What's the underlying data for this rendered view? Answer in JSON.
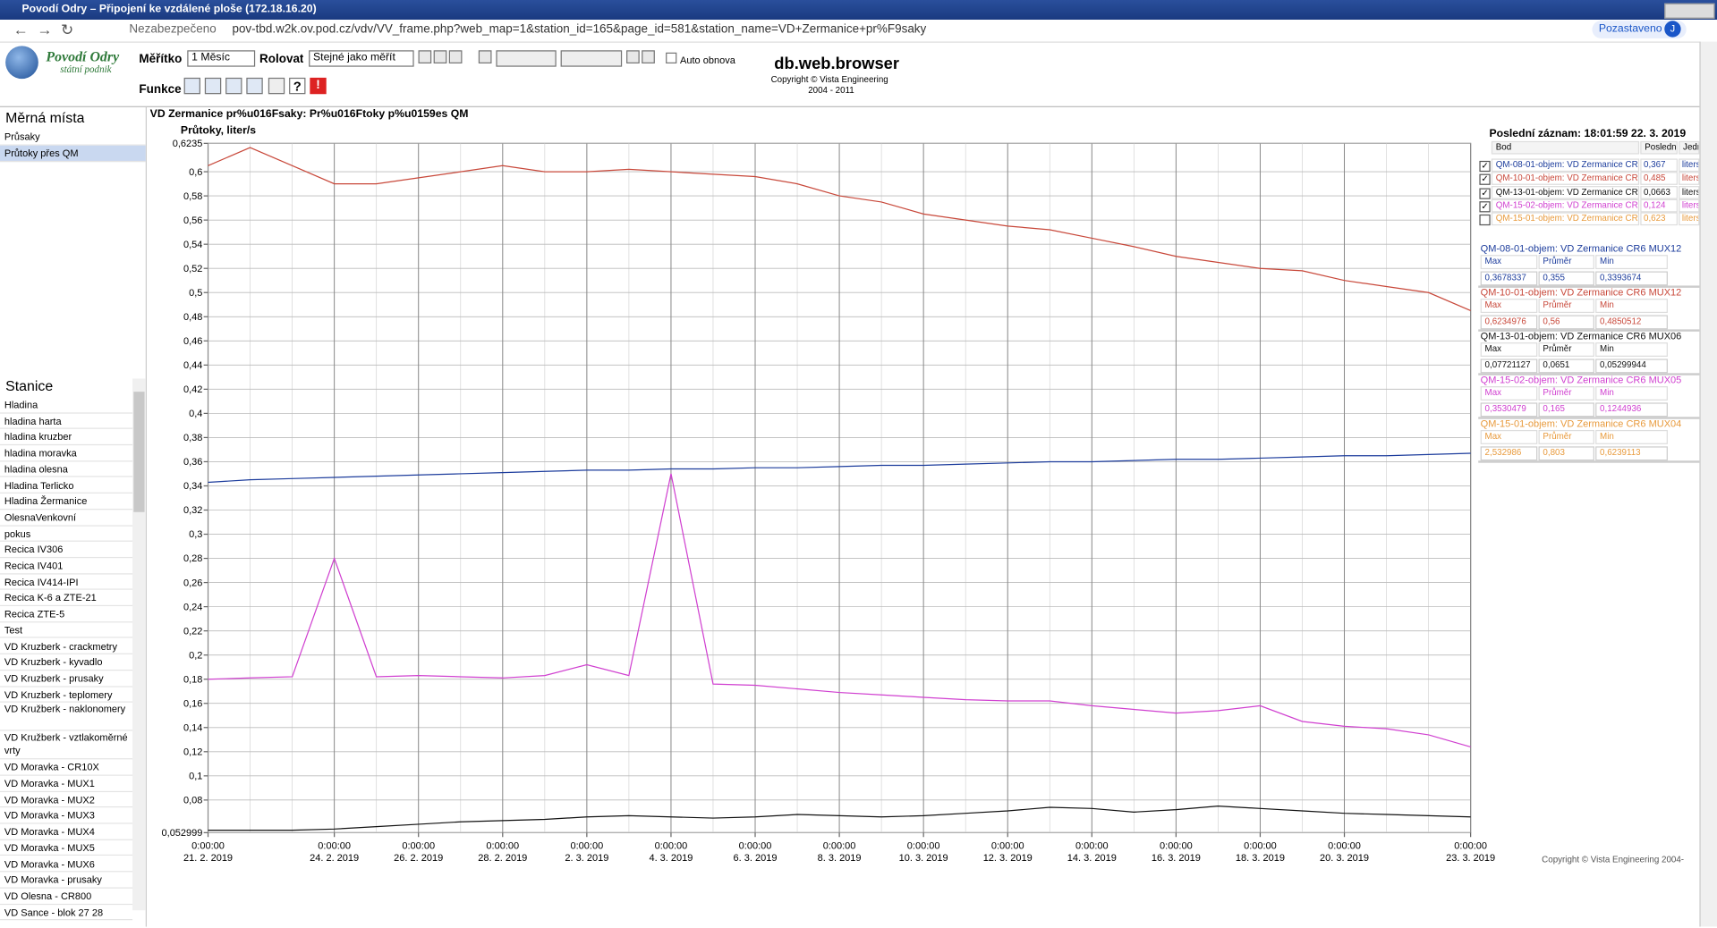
{
  "window_title": "Povodí Odry – Připojení ke vzdálené ploše (172.18.16.20)",
  "browser": {
    "security": "Nezabezpečeno",
    "url": "pov-tbd.w2k.ov.pod.cz/vdv/VV_frame.php?web_map=1&station_id=165&page_id=581&station_name=VD+Zermanice+pr%F9saky",
    "profile": "Pozastaveno",
    "avatar": "J"
  },
  "header": {
    "logo_line1": "Povodí Odry",
    "logo_line2": "státní podnik",
    "scale_label": "Měřítko",
    "scale_value": "1 Měsíc",
    "scroll_label": "Rolovat",
    "scroll_value": "Stejné jako měřít",
    "auto_refresh": "Auto obnova",
    "functions_label": "Funkce",
    "app_title": "db.web.browser",
    "copyright": "Copyright © Vista Engineering",
    "years": "2004 - 2011"
  },
  "sidebar": {
    "places_title": "Měrná místa",
    "places": [
      "Průsaky",
      "Průtoky přes QM"
    ],
    "stations_title": "Stanice",
    "stations": [
      "Hladina",
      "hladina harta",
      "hladina kruzber",
      "hladina moravka",
      "hladina olesna",
      "Hladina Terlicko",
      "Hladina Žermanice",
      "OlesnaVenkovní",
      "pokus",
      "Recica IV306",
      "Recica IV401",
      "Recica IV414-IPI",
      "Recica K-6 a ZTE-21",
      "Recica ZTE-5",
      "Test",
      "VD Kruzberk - crackmetry",
      "VD Kruzberk - kyvadlo",
      "VD Kruzberk - prusaky",
      "VD Kruzberk - teplomery",
      "VD Kružberk - naklonomery",
      "VD Kružberk - vztlakoměrné vrty",
      "VD Moravka - CR10X",
      "VD Moravka - MUX1",
      "VD Moravka - MUX2",
      "VD Moravka - MUX3",
      "VD Moravka - MUX4",
      "VD Moravka - MUX5",
      "VD Moravka - MUX6",
      "VD Moravka - prusaky",
      "VD Olesna - CR800",
      "VD Sance - blok 27 28"
    ]
  },
  "chart_data": {
    "type": "line",
    "title": "VD Zermanice pr%u016Fsaky: Pr%u016Ftoky p%u0159es QM",
    "y_label": "Průtoky, liter/s",
    "x": [
      "2019-02-21",
      "2019-02-22",
      "2019-02-23",
      "2019-02-24",
      "2019-02-25",
      "2019-02-26",
      "2019-02-27",
      "2019-02-28",
      "2019-03-01",
      "2019-03-02",
      "2019-03-03",
      "2019-03-04",
      "2019-03-05",
      "2019-03-06",
      "2019-03-07",
      "2019-03-08",
      "2019-03-09",
      "2019-03-10",
      "2019-03-11",
      "2019-03-12",
      "2019-03-13",
      "2019-03-14",
      "2019-03-15",
      "2019-03-16",
      "2019-03-17",
      "2019-03-18",
      "2019-03-19",
      "2019-03-20",
      "2019-03-21",
      "2019-03-22",
      "2019-03-23"
    ],
    "xlim": [
      "2019-02-21",
      "2019-03-23"
    ],
    "xtick_time": "0:00:00",
    "xticks": [
      {
        "value": "2019-02-21",
        "label": "21. 2. 2019"
      },
      {
        "value": "2019-02-24",
        "label": "24. 2. 2019"
      },
      {
        "value": "2019-02-26",
        "label": "26. 2. 2019"
      },
      {
        "value": "2019-02-28",
        "label": "28. 2. 2019"
      },
      {
        "value": "2019-03-02",
        "label": "2. 3. 2019"
      },
      {
        "value": "2019-03-04",
        "label": "4. 3. 2019"
      },
      {
        "value": "2019-03-06",
        "label": "6. 3. 2019"
      },
      {
        "value": "2019-03-08",
        "label": "8. 3. 2019"
      },
      {
        "value": "2019-03-10",
        "label": "10. 3. 2019"
      },
      {
        "value": "2019-03-12",
        "label": "12. 3. 2019"
      },
      {
        "value": "2019-03-14",
        "label": "14. 3. 2019"
      },
      {
        "value": "2019-03-16",
        "label": "16. 3. 2019"
      },
      {
        "value": "2019-03-18",
        "label": "18. 3. 2019"
      },
      {
        "value": "2019-03-20",
        "label": "20. 3. 2019"
      },
      {
        "value": "2019-03-23",
        "label": "23. 3. 2019"
      }
    ],
    "ylim": [
      0.052999,
      0.6235
    ],
    "yticks": [
      {
        "value": 0.052999,
        "label": "0,052999"
      },
      {
        "value": 0.08,
        "label": "0,08"
      },
      {
        "value": 0.1,
        "label": "0,1"
      },
      {
        "value": 0.12,
        "label": "0,12"
      },
      {
        "value": 0.14,
        "label": "0,14"
      },
      {
        "value": 0.16,
        "label": "0,16"
      },
      {
        "value": 0.18,
        "label": "0,18"
      },
      {
        "value": 0.2,
        "label": "0,2"
      },
      {
        "value": 0.22,
        "label": "0,22"
      },
      {
        "value": 0.24,
        "label": "0,24"
      },
      {
        "value": 0.26,
        "label": "0,26"
      },
      {
        "value": 0.28,
        "label": "0,28"
      },
      {
        "value": 0.3,
        "label": "0,3"
      },
      {
        "value": 0.32,
        "label": "0,32"
      },
      {
        "value": 0.34,
        "label": "0,34"
      },
      {
        "value": 0.36,
        "label": "0,36"
      },
      {
        "value": 0.38,
        "label": "0,38"
      },
      {
        "value": 0.4,
        "label": "0,4"
      },
      {
        "value": 0.42,
        "label": "0,42"
      },
      {
        "value": 0.44,
        "label": "0,44"
      },
      {
        "value": 0.46,
        "label": "0,46"
      },
      {
        "value": 0.48,
        "label": "0,48"
      },
      {
        "value": 0.5,
        "label": "0,5"
      },
      {
        "value": 0.52,
        "label": "0,52"
      },
      {
        "value": 0.54,
        "label": "0,54"
      },
      {
        "value": 0.56,
        "label": "0,56"
      },
      {
        "value": 0.58,
        "label": "0,58"
      },
      {
        "value": 0.6,
        "label": "0,6"
      },
      {
        "value": 0.6235,
        "label": "0,6235"
      }
    ],
    "grid": true,
    "series": [
      {
        "name": "QM-08-01-objem: VD Zermanice CR6 MUX12",
        "color": "#1c3c9c",
        "values": [
          0.343,
          0.345,
          0.346,
          0.347,
          0.348,
          0.349,
          0.35,
          0.351,
          0.352,
          0.353,
          0.353,
          0.354,
          0.354,
          0.355,
          0.355,
          0.356,
          0.357,
          0.357,
          0.358,
          0.359,
          0.36,
          0.36,
          0.361,
          0.362,
          0.362,
          0.363,
          0.364,
          0.365,
          0.365,
          0.366,
          0.367
        ]
      },
      {
        "name": "QM-10-01-objem: VD Zermanice CR6 MUX12",
        "color": "#c8483a",
        "values": [
          0.605,
          0.62,
          0.605,
          0.59,
          0.59,
          0.595,
          0.6,
          0.605,
          0.6,
          0.6,
          0.602,
          0.6,
          0.598,
          0.596,
          0.59,
          0.58,
          0.575,
          0.565,
          0.56,
          0.555,
          0.552,
          0.545,
          0.538,
          0.53,
          0.525,
          0.52,
          0.518,
          0.51,
          0.505,
          0.5,
          0.485
        ]
      },
      {
        "name": "QM-13-01-objem: VD Zermanice CR6 MUX06",
        "color": "#111111",
        "values": [
          0.055,
          0.055,
          0.055,
          0.056,
          0.058,
          0.06,
          0.062,
          0.063,
          0.064,
          0.066,
          0.067,
          0.066,
          0.065,
          0.066,
          0.068,
          0.067,
          0.066,
          0.067,
          0.069,
          0.071,
          0.074,
          0.073,
          0.07,
          0.072,
          0.075,
          0.073,
          0.071,
          0.069,
          0.068,
          0.067,
          0.066
        ]
      },
      {
        "name": "QM-15-02-objem: VD Zermanice CR6 MUX05",
        "color": "#d040d0",
        "values": [
          0.18,
          0.181,
          0.182,
          0.28,
          0.182,
          0.183,
          0.182,
          0.181,
          0.183,
          0.192,
          0.183,
          0.35,
          0.176,
          0.175,
          0.172,
          0.169,
          0.167,
          0.165,
          0.163,
          0.162,
          0.162,
          0.158,
          0.155,
          0.152,
          0.154,
          0.158,
          0.145,
          0.141,
          0.139,
          0.134,
          0.124
        ]
      }
    ]
  },
  "legend_panel": {
    "last_record": "Poslední záznam: 18:01:59 22. 3. 2019",
    "headers": [
      "Bod",
      "Poslední",
      "Jedn"
    ],
    "hidden_series": {
      "name": "QM-15-01-objem: VD Zermanice CR6 MUX04",
      "color": "#e89a3c"
    },
    "rows": [
      {
        "last": "0,367",
        "unit": "liters",
        "checked": true
      },
      {
        "last": "0,485",
        "unit": "liters",
        "checked": true
      },
      {
        "last": "0,0663",
        "unit": "liters",
        "checked": true
      },
      {
        "last": "0,124",
        "unit": "liters",
        "checked": true
      },
      {
        "last": "0,623",
        "unit": "liters",
        "checked": false
      }
    ],
    "stat_headers": [
      "Max",
      "Průměr",
      "Min"
    ],
    "stats": [
      {
        "title": "QM-08-01-objem: VD Zermanice CR6 MUX12",
        "values": [
          "0,3678337",
          "0,355",
          "0,3393674"
        ]
      },
      {
        "title": "QM-10-01-objem: VD Zermanice CR6 MUX12",
        "values": [
          "0,6234976",
          "0,56",
          "0,4850512"
        ]
      },
      {
        "title": "QM-13-01-objem: VD Zermanice CR6 MUX06",
        "values": [
          "0,07721127",
          "0,0651",
          "0,05299944"
        ]
      },
      {
        "title": "QM-15-02-objem: VD Zermanice CR6 MUX05",
        "values": [
          "0,3530479",
          "0,165",
          "0,1244936"
        ]
      },
      {
        "title": "QM-15-01-objem: VD Zermanice CR6 MUX04",
        "values": [
          "2,532986",
          "0,803",
          "0,6239113"
        ]
      }
    ]
  },
  "footer": "Copyright © Vista Engineering 2004-"
}
